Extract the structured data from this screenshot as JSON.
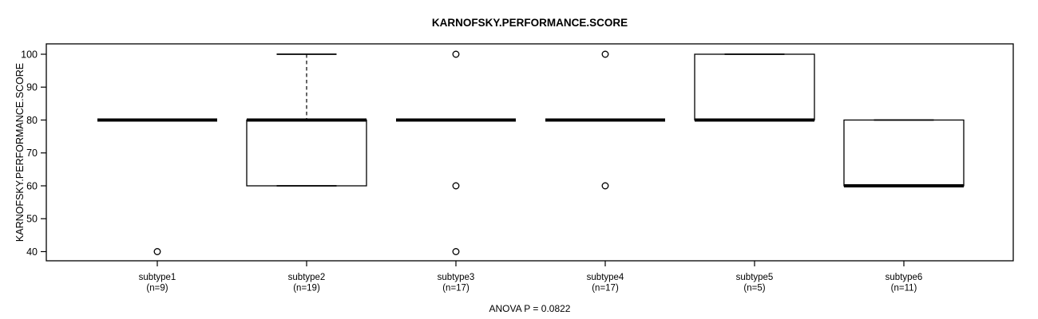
{
  "title": "KARNOFSKY.PERFORMANCE.SCORE",
  "footer": "ANOVA P = 0.0822",
  "chart_data": {
    "type": "boxplot",
    "title": "KARNOFSKY.PERFORMANCE.SCORE",
    "xlabel": "",
    "ylabel": "KARNOFSKY.PERFORMANCE.SCORE",
    "annotation": "ANOVA P = 0.0822",
    "grid": false,
    "legend": "none",
    "ylim": [
      37.3,
      103.2
    ],
    "yticks": [
      40,
      50,
      60,
      70,
      80,
      90,
      100
    ],
    "categories": [
      "subtype1",
      "subtype2",
      "subtype3",
      "subtype4",
      "subtype5",
      "subtype6"
    ],
    "colors": {
      "stroke": "#000000",
      "box_fill": "#ffffff",
      "background": "#ffffff"
    },
    "groups": [
      {
        "label": "subtype1",
        "sublabel": "(n=9)",
        "n": 9,
        "q1": 80,
        "median": 80,
        "q3": 80,
        "whisker_low": 80,
        "whisker_high": 80,
        "outliers": [
          40
        ]
      },
      {
        "label": "subtype2",
        "sublabel": "(n=19)",
        "n": 19,
        "q1": 60,
        "median": 80,
        "q3": 80,
        "whisker_low": 60,
        "whisker_high": 100,
        "outliers": []
      },
      {
        "label": "subtype3",
        "sublabel": "(n=17)",
        "n": 17,
        "q1": 80,
        "median": 80,
        "q3": 80,
        "whisker_low": 80,
        "whisker_high": 80,
        "outliers": [
          100,
          60,
          40
        ]
      },
      {
        "label": "subtype4",
        "sublabel": "(n=17)",
        "n": 17,
        "q1": 80,
        "median": 80,
        "q3": 80,
        "whisker_low": 80,
        "whisker_high": 80,
        "outliers": [
          100,
          60
        ]
      },
      {
        "label": "subtype5",
        "sublabel": "(n=5)",
        "n": 5,
        "q1": 80,
        "median": 80,
        "q3": 100,
        "whisker_low": 80,
        "whisker_high": 100,
        "outliers": []
      },
      {
        "label": "subtype6",
        "sublabel": "(n=11)",
        "n": 11,
        "q1": 60,
        "median": 60,
        "q3": 80,
        "whisker_low": 60,
        "whisker_high": 80,
        "outliers": []
      }
    ]
  }
}
